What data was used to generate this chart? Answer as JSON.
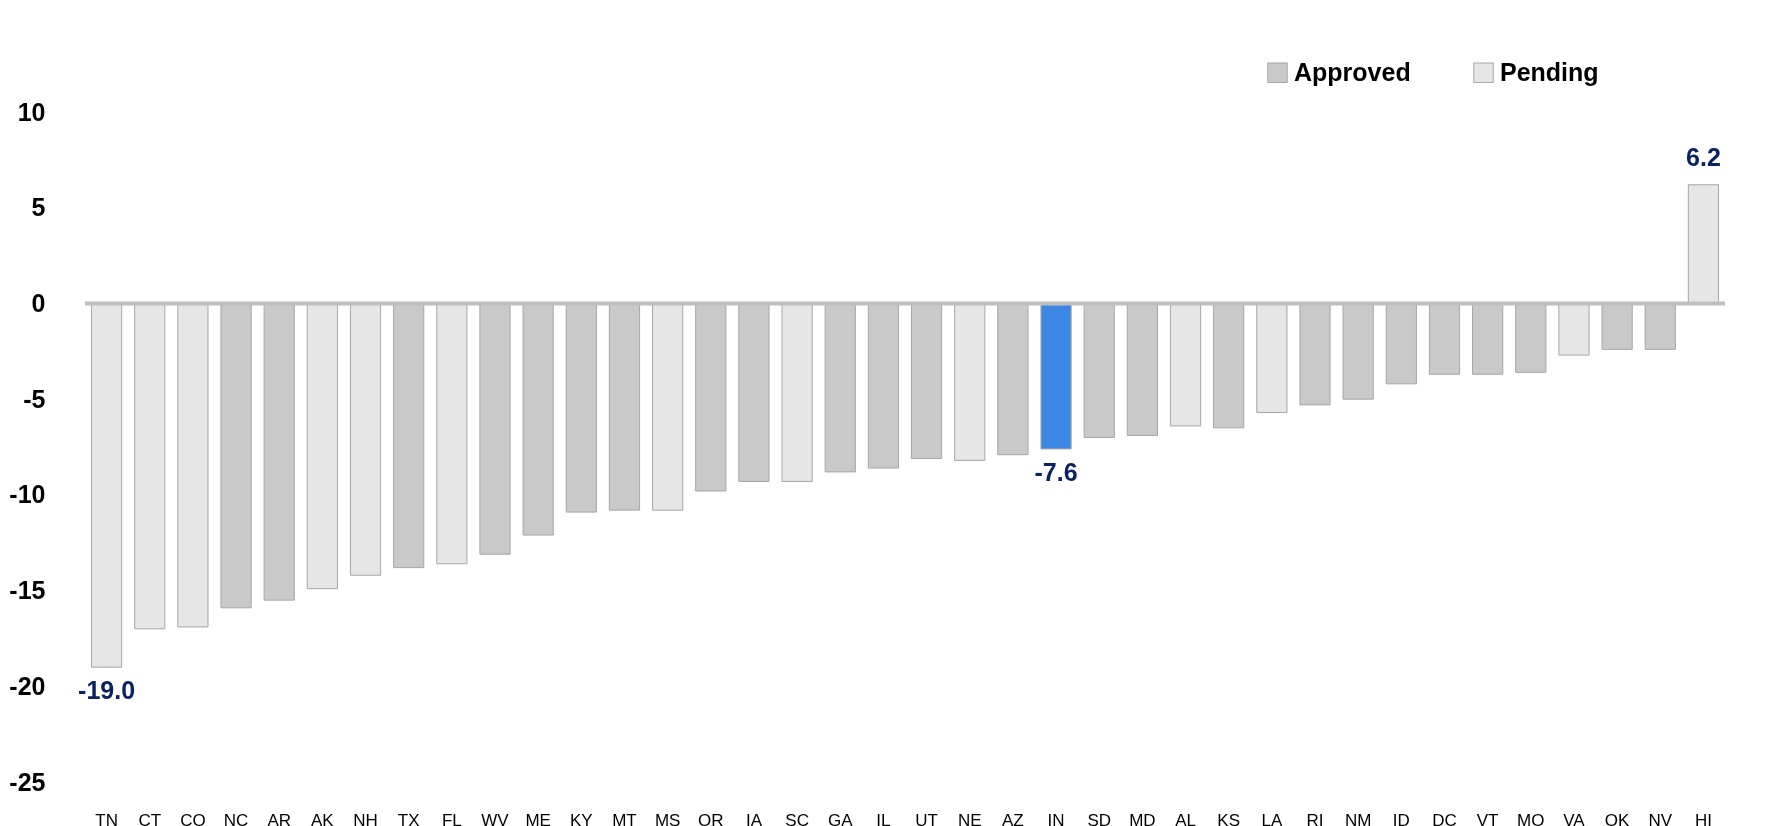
{
  "chart_data": {
    "type": "bar",
    "categories": [
      "TN",
      "CT",
      "CO",
      "NC",
      "AR",
      "AK",
      "NH",
      "TX",
      "FL",
      "WV",
      "ME",
      "KY",
      "MT",
      "MS",
      "OR",
      "IA",
      "SC",
      "GA",
      "IL",
      "UT",
      "NE",
      "AZ",
      "IN",
      "SD",
      "MD",
      "AL",
      "KS",
      "LA",
      "RI",
      "NM",
      "ID",
      "DC",
      "VT",
      "MO",
      "VA",
      "OK",
      "NV",
      "HI"
    ],
    "series": [
      {
        "name": "Approved",
        "color": "#c9c9c9",
        "values": [
          null,
          null,
          null,
          -15.9,
          -15.5,
          null,
          null,
          -13.8,
          null,
          -13.1,
          -12.1,
          -10.9,
          -10.8,
          null,
          -9.8,
          -9.3,
          null,
          -8.8,
          -8.6,
          -8.1,
          null,
          -7.9,
          null,
          -7.0,
          -6.9,
          null,
          -6.5,
          null,
          -5.3,
          -5.0,
          -4.2,
          -3.7,
          -3.7,
          -3.6,
          null,
          -2.4,
          -2.4,
          null
        ]
      },
      {
        "name": "Pending",
        "color": "#e6e6e6",
        "value_labels": [
          "-19.0",
          null,
          null,
          null,
          null,
          null,
          null,
          null,
          null,
          null,
          null,
          null,
          null,
          null,
          null,
          null,
          null,
          null,
          null,
          null,
          null,
          null,
          null,
          null,
          null,
          null,
          null,
          null,
          null,
          null,
          null,
          null,
          null,
          null,
          null,
          null,
          null,
          "6.2"
        ],
        "values": [
          -19.0,
          -17.0,
          -16.9,
          null,
          null,
          -14.9,
          -14.2,
          null,
          -13.6,
          null,
          null,
          null,
          null,
          -10.8,
          null,
          null,
          -9.3,
          null,
          null,
          null,
          -8.2,
          null,
          null,
          null,
          null,
          -6.4,
          null,
          -5.7,
          null,
          null,
          null,
          null,
          null,
          null,
          -2.7,
          null,
          null,
          6.2
        ]
      },
      {
        "color": "#3a88e4",
        "value_labels": [
          null,
          null,
          null,
          null,
          null,
          null,
          null,
          null,
          null,
          null,
          null,
          null,
          null,
          null,
          null,
          null,
          null,
          null,
          null,
          null,
          null,
          null,
          "-7.6",
          null,
          null,
          null,
          null,
          null,
          null,
          null,
          null,
          null,
          null,
          null,
          null,
          null,
          null,
          null
        ],
        "values": [
          null,
          null,
          null,
          null,
          null,
          null,
          null,
          null,
          null,
          null,
          null,
          null,
          null,
          null,
          null,
          null,
          null,
          null,
          null,
          null,
          null,
          null,
          -7.6,
          null,
          null,
          null,
          null,
          null,
          null,
          null,
          null,
          null,
          null,
          null,
          null,
          null,
          null,
          null
        ]
      }
    ],
    "ylim": [
      -25,
      10
    ],
    "yticks": [
      -25,
      -20,
      -15,
      -10,
      -5,
      0,
      5,
      10
    ],
    "ref_lines": [
      {
        "axis": "y",
        "value": 0,
        "color": "#bfbfbf"
      }
    ],
    "legend": "top right"
  }
}
